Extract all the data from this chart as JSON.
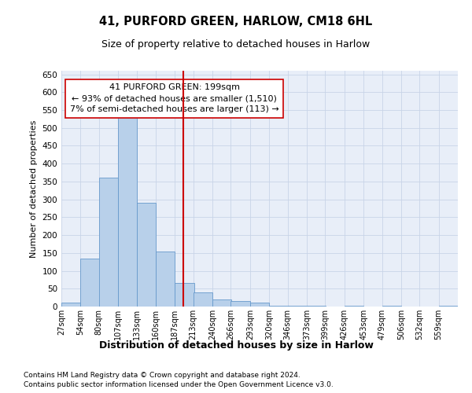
{
  "title": "41, PURFORD GREEN, HARLOW, CM18 6HL",
  "subtitle": "Size of property relative to detached houses in Harlow",
  "xlabel": "Distribution of detached houses by size in Harlow",
  "ylabel": "Number of detached properties",
  "bin_labels": [
    "27sqm",
    "54sqm",
    "80sqm",
    "107sqm",
    "133sqm",
    "160sqm",
    "187sqm",
    "213sqm",
    "240sqm",
    "266sqm",
    "293sqm",
    "320sqm",
    "346sqm",
    "373sqm",
    "399sqm",
    "426sqm",
    "453sqm",
    "479sqm",
    "506sqm",
    "532sqm",
    "559sqm"
  ],
  "bin_left_edges": [
    27,
    54,
    80,
    107,
    133,
    160,
    187,
    213,
    240,
    266,
    293,
    320,
    346,
    373,
    399,
    426,
    453,
    479,
    506,
    532,
    559
  ],
  "bin_width": 27,
  "bar_values": [
    10,
    135,
    360,
    535,
    290,
    155,
    65,
    40,
    20,
    15,
    10,
    3,
    3,
    3,
    0,
    3,
    0,
    3,
    0,
    0,
    3
  ],
  "bar_color": "#b8d0ea",
  "bar_edge_color": "#6699cc",
  "reference_line_x": 199,
  "reference_line_color": "#cc0000",
  "annotation_line1": "41 PURFORD GREEN: 199sqm",
  "annotation_line2": "← 93% of detached houses are smaller (1,510)",
  "annotation_line3": "7% of semi-detached houses are larger (113) →",
  "annotation_box_facecolor": "white",
  "annotation_box_edgecolor": "#cc0000",
  "ylim": [
    0,
    660
  ],
  "yticks": [
    0,
    50,
    100,
    150,
    200,
    250,
    300,
    350,
    400,
    450,
    500,
    550,
    600,
    650
  ],
  "grid_color": "#c8d4e8",
  "background_color": "#e8eef8",
  "footnote1": "Contains HM Land Registry data © Crown copyright and database right 2024.",
  "footnote2": "Contains public sector information licensed under the Open Government Licence v3.0."
}
